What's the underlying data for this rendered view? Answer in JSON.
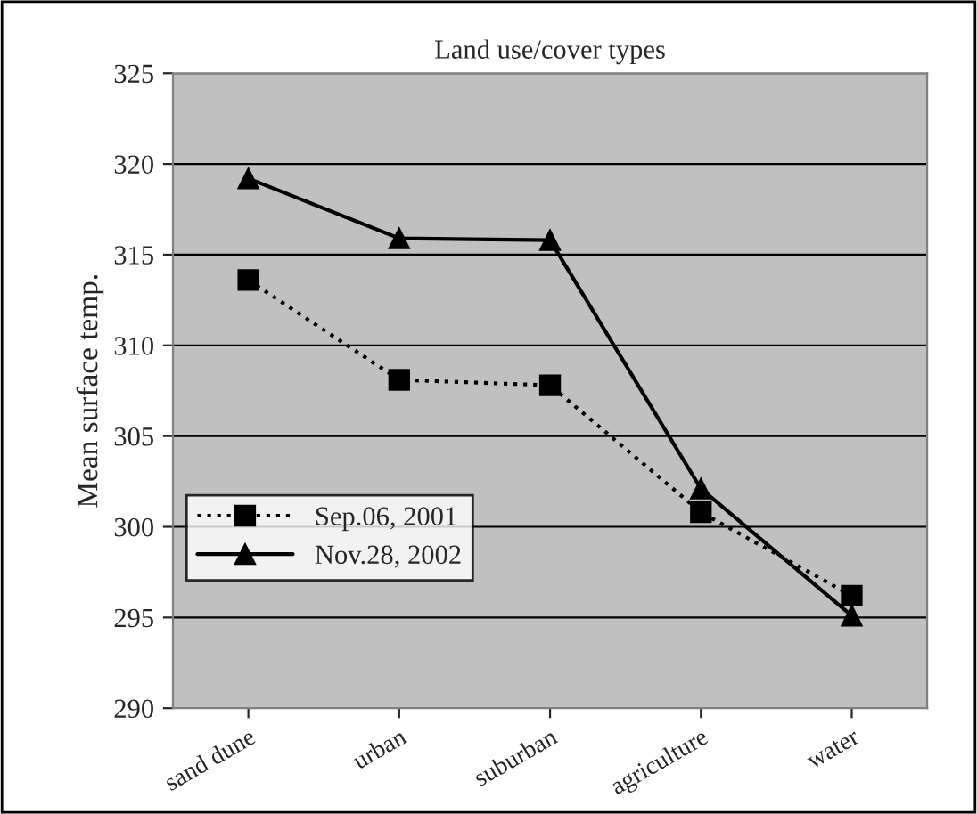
{
  "chart_data": {
    "type": "line",
    "title": "Land use/cover types",
    "ylabel": "Mean surface temp.",
    "categories": [
      "sand dune",
      "urban",
      "suburban",
      "agriculture",
      "water"
    ],
    "series": [
      {
        "name": "Sep.06, 2001",
        "color": "#000000",
        "marker": "square",
        "line_style": "dotted",
        "values": [
          313.6,
          308.1,
          307.8,
          300.8,
          296.2
        ]
      },
      {
        "name": "Nov.28, 2002",
        "color": "#000000",
        "marker": "triangle",
        "line_style": "solid",
        "values": [
          319.2,
          315.9,
          315.8,
          302.1,
          295.1
        ]
      }
    ],
    "ylim": [
      290,
      325
    ],
    "yticks": [
      290,
      295,
      300,
      305,
      310,
      315,
      320,
      325
    ],
    "grid": "y",
    "legend": "bottom left"
  }
}
